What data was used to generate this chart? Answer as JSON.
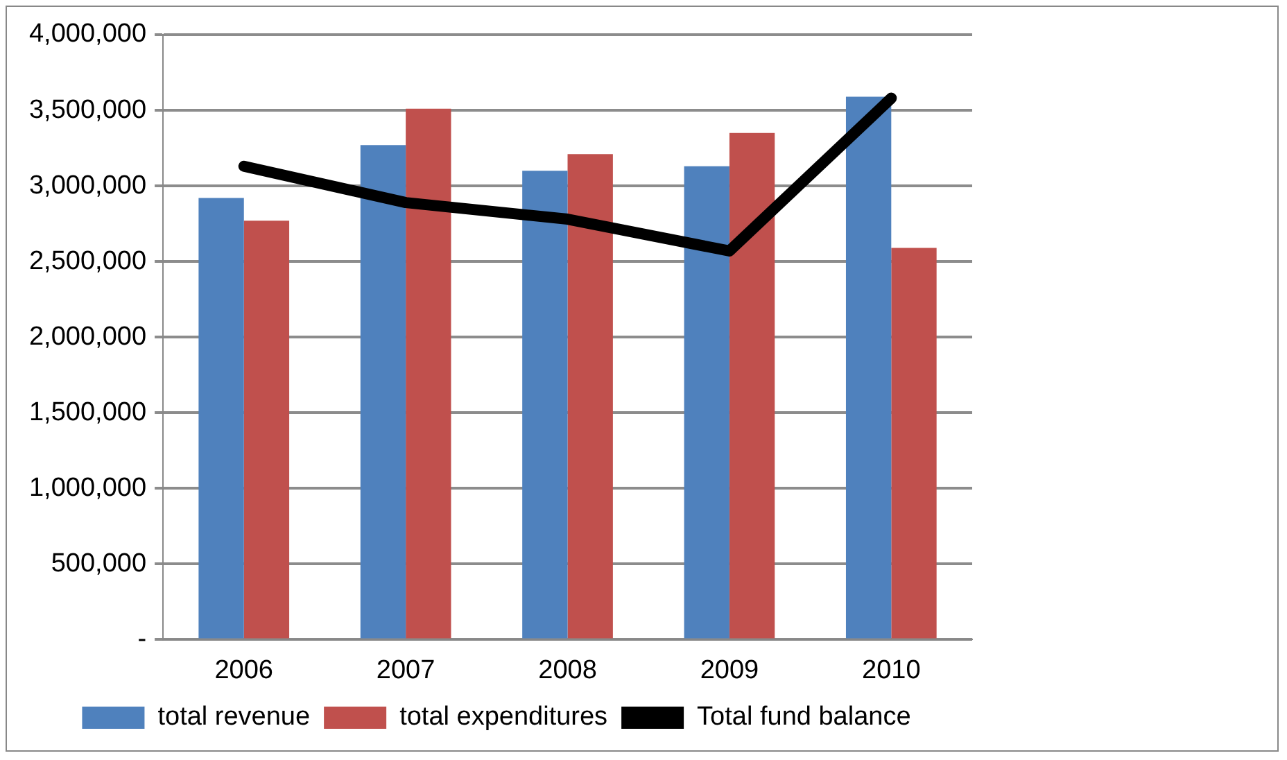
{
  "chart_data": {
    "type": "bar",
    "categories": [
      "2006",
      "2007",
      "2008",
      "2009",
      "2010"
    ],
    "series": [
      {
        "name": "total revenue",
        "color": "#4f81bd",
        "values": [
          2920000,
          3270000,
          3100000,
          3130000,
          3590000
        ]
      },
      {
        "name": "total expenditures",
        "color": "#c0504d",
        "values": [
          2770000,
          3510000,
          3210000,
          3350000,
          2590000
        ]
      },
      {
        "name": "Total fund balance",
        "type": "line",
        "color": "#000000",
        "values": [
          3130000,
          2890000,
          2780000,
          2570000,
          3580000
        ]
      }
    ],
    "ylim": [
      0,
      4000000
    ],
    "yticks": [
      {
        "value": 0,
        "label": "-"
      },
      {
        "value": 500000,
        "label": "500,000"
      },
      {
        "value": 1000000,
        "label": "1,000,000"
      },
      {
        "value": 1500000,
        "label": "1,500,000"
      },
      {
        "value": 2000000,
        "label": "2,000,000"
      },
      {
        "value": 2500000,
        "label": "2,500,000"
      },
      {
        "value": 3000000,
        "label": "3,000,000"
      },
      {
        "value": 3500000,
        "label": "3,500,000"
      },
      {
        "value": 4000000,
        "label": "4,000,000"
      }
    ],
    "grid": "y",
    "legend": "bottom",
    "marker": "none"
  }
}
